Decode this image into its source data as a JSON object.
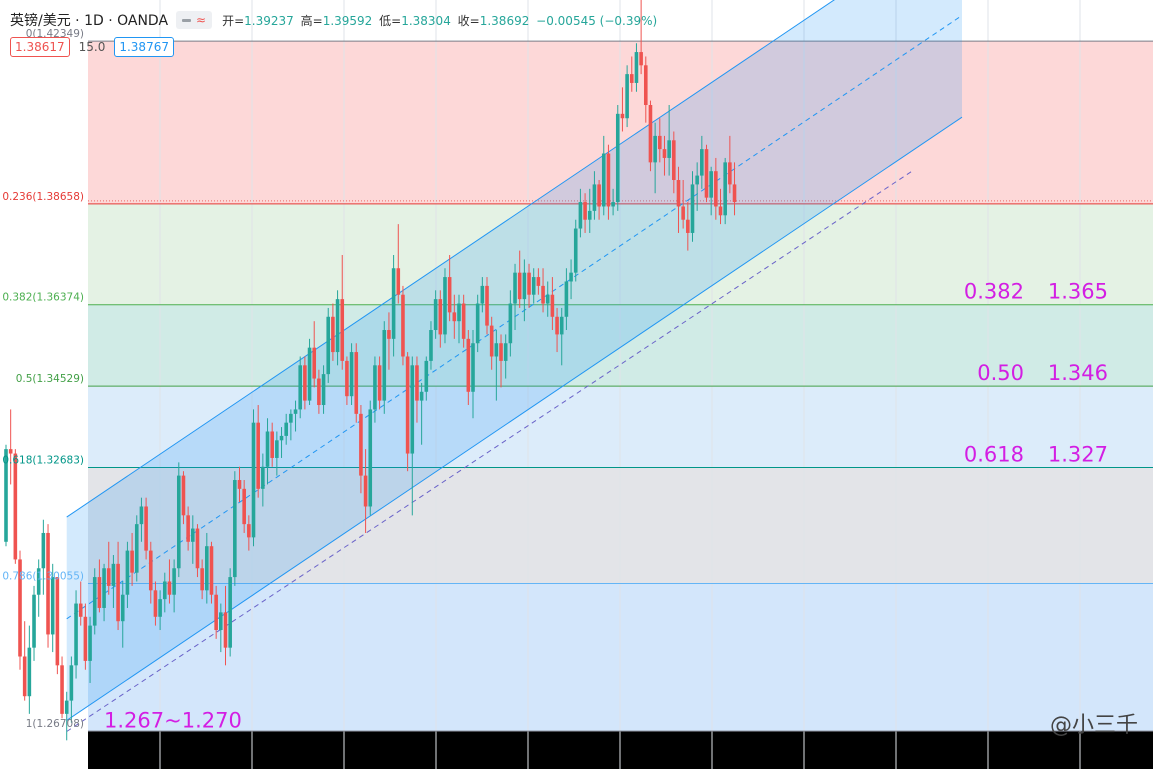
{
  "header": {
    "title": "英镑/美元 · 1D · OANDA",
    "open_label": "开=",
    "open": "1.39237",
    "high_label": "高=",
    "high": "1.39592",
    "low_label": "低=",
    "low": "1.38304",
    "close_label": "收=",
    "close": "1.38692",
    "change": "−0.00545 (−0.39%)",
    "toggle_icons": [
      "dash-icon",
      "wave-icon"
    ],
    "toggle_wave_glyph": "≈"
  },
  "trade": {
    "sell": "1.38617",
    "spread": "15.0",
    "buy": "1.38767"
  },
  "watermark": "@小三千",
  "chart_data": {
    "type": "candlestick",
    "title": "英镑/美元 · 1D · OANDA",
    "ylim": [
      1.2585,
      1.4328
    ],
    "fib_levels": [
      {
        "ratio": "0",
        "label": "0(1.42349)",
        "price": 1.42349,
        "color": "#787b86"
      },
      {
        "ratio": "0.236",
        "label": "0.236(1.38658)",
        "price": 1.38658,
        "color": "#e53935"
      },
      {
        "ratio": "0.382",
        "label": "0.382(1.36374)",
        "price": 1.36374,
        "color": "#4caf50"
      },
      {
        "ratio": "0.5",
        "label": "0.5(1.34529)",
        "price": 1.34529,
        "color": "#43a047"
      },
      {
        "ratio": "0.618",
        "label": "0.618(1.32683)",
        "price": 1.32683,
        "color": "#009688"
      },
      {
        "ratio": "0.786",
        "label": "0.786(1.30055)",
        "price": 1.30055,
        "color": "#64b5f6"
      },
      {
        "ratio": "1",
        "label": "1(1.26708)",
        "price": 1.26708,
        "color": "#787b86"
      }
    ],
    "zone_colors": [
      "#fdd8d8",
      "#e4f2e4",
      "#d0ebe6",
      "#dcecfa",
      "#e3e4e8",
      "#d3e6fb"
    ],
    "annotations": [
      {
        "ratio": "0.382",
        "value": "1.365",
        "price": 1.36374
      },
      {
        "ratio": "0.50",
        "value": "1.346",
        "price": 1.34529
      },
      {
        "ratio": "0.618",
        "value": "1.327",
        "price": 1.32683
      }
    ],
    "support_label": "1.267~1.270",
    "support_price": 1.269,
    "up_color": "#26a69a",
    "down_color": "#ef5350",
    "channel_color": "#2196f3",
    "channel": [
      {
        "bar": 13,
        "price": 1.2695
      },
      {
        "bar": 156,
        "price": 1.3715
      }
    ],
    "channel_width": 0.0461,
    "extension_line": [
      {
        "bar": 13,
        "price": 1.267
      },
      {
        "bar": 194,
        "price": 1.394
      }
    ],
    "candles": [
      [
        1.31,
        1.332,
        1.309,
        1.331
      ],
      [
        1.331,
        1.34,
        1.323,
        1.33
      ],
      [
        1.33,
        1.331,
        1.305,
        1.306
      ],
      [
        1.306,
        1.308,
        1.281,
        1.284
      ],
      [
        1.284,
        1.292,
        1.274,
        1.275
      ],
      [
        1.275,
        1.291,
        1.271,
        1.286
      ],
      [
        1.286,
        1.3,
        1.283,
        1.298
      ],
      [
        1.298,
        1.306,
        1.293,
        1.304
      ],
      [
        1.304,
        1.315,
        1.298,
        1.312
      ],
      [
        1.312,
        1.314,
        1.286,
        1.289
      ],
      [
        1.289,
        1.305,
        1.285,
        1.302
      ],
      [
        1.302,
        1.302,
        1.28,
        1.282
      ],
      [
        1.282,
        1.284,
        1.27,
        1.271
      ],
      [
        1.271,
        1.276,
        1.265,
        1.274
      ],
      [
        1.274,
        1.284,
        1.269,
        1.282
      ],
      [
        1.282,
        1.299,
        1.279,
        1.296
      ],
      [
        1.296,
        1.301,
        1.291,
        1.293
      ],
      [
        1.293,
        1.296,
        1.281,
        1.283
      ],
      [
        1.283,
        1.293,
        1.278,
        1.291
      ],
      [
        1.291,
        1.304,
        1.289,
        1.302
      ],
      [
        1.302,
        1.306,
        1.294,
        1.295
      ],
      [
        1.295,
        1.305,
        1.292,
        1.304
      ],
      [
        1.304,
        1.31,
        1.298,
        1.3
      ],
      [
        1.3,
        1.307,
        1.295,
        1.305
      ],
      [
        1.305,
        1.31,
        1.29,
        1.292
      ],
      [
        1.292,
        1.301,
        1.286,
        1.298
      ],
      [
        1.298,
        1.31,
        1.295,
        1.308
      ],
      [
        1.308,
        1.312,
        1.3,
        1.303
      ],
      [
        1.303,
        1.316,
        1.301,
        1.314
      ],
      [
        1.314,
        1.32,
        1.31,
        1.318
      ],
      [
        1.318,
        1.32,
        1.306,
        1.308
      ],
      [
        1.308,
        1.31,
        1.296,
        1.299
      ],
      [
        1.299,
        1.301,
        1.291,
        1.293
      ],
      [
        1.293,
        1.299,
        1.29,
        1.297
      ],
      [
        1.297,
        1.303,
        1.294,
        1.301
      ],
      [
        1.301,
        1.306,
        1.296,
        1.298
      ],
      [
        1.298,
        1.306,
        1.294,
        1.304
      ],
      [
        1.304,
        1.328,
        1.302,
        1.325
      ],
      [
        1.325,
        1.326,
        1.314,
        1.316
      ],
      [
        1.316,
        1.318,
        1.308,
        1.31
      ],
      [
        1.31,
        1.316,
        1.305,
        1.313
      ],
      [
        1.313,
        1.314,
        1.302,
        1.304
      ],
      [
        1.304,
        1.306,
        1.297,
        1.299
      ],
      [
        1.299,
        1.312,
        1.296,
        1.309
      ],
      [
        1.309,
        1.31,
        1.296,
        1.298
      ],
      [
        1.298,
        1.3,
        1.288,
        1.29
      ],
      [
        1.29,
        1.296,
        1.285,
        1.294
      ],
      [
        1.294,
        1.3,
        1.282,
        1.286
      ],
      [
        1.286,
        1.304,
        1.284,
        1.302
      ],
      [
        1.302,
        1.326,
        1.3,
        1.324
      ],
      [
        1.324,
        1.327,
        1.319,
        1.322
      ],
      [
        1.322,
        1.324,
        1.312,
        1.314
      ],
      [
        1.314,
        1.316,
        1.308,
        1.311
      ],
      [
        1.311,
        1.34,
        1.309,
        1.337
      ],
      [
        1.337,
        1.341,
        1.32,
        1.322
      ],
      [
        1.322,
        1.33,
        1.318,
        1.327
      ],
      [
        1.327,
        1.338,
        1.323,
        1.335
      ],
      [
        1.335,
        1.337,
        1.327,
        1.329
      ],
      [
        1.329,
        1.335,
        1.325,
        1.333
      ],
      [
        1.333,
        1.336,
        1.329,
        1.334
      ],
      [
        1.334,
        1.339,
        1.332,
        1.337
      ],
      [
        1.337,
        1.34,
        1.333,
        1.339
      ],
      [
        1.339,
        1.342,
        1.335,
        1.34
      ],
      [
        1.34,
        1.352,
        1.338,
        1.35
      ],
      [
        1.35,
        1.352,
        1.34,
        1.342
      ],
      [
        1.342,
        1.356,
        1.341,
        1.354
      ],
      [
        1.354,
        1.36,
        1.345,
        1.347
      ],
      [
        1.347,
        1.349,
        1.339,
        1.341
      ],
      [
        1.341,
        1.35,
        1.339,
        1.348
      ],
      [
        1.348,
        1.363,
        1.346,
        1.361
      ],
      [
        1.361,
        1.364,
        1.351,
        1.353
      ],
      [
        1.353,
        1.367,
        1.35,
        1.365
      ],
      [
        1.365,
        1.375,
        1.349,
        1.351
      ],
      [
        1.351,
        1.352,
        1.341,
        1.343
      ],
      [
        1.343,
        1.355,
        1.341,
        1.353
      ],
      [
        1.353,
        1.355,
        1.337,
        1.339
      ],
      [
        1.339,
        1.341,
        1.321,
        1.325
      ],
      [
        1.325,
        1.331,
        1.312,
        1.318
      ],
      [
        1.318,
        1.342,
        1.316,
        1.34
      ],
      [
        1.34,
        1.352,
        1.337,
        1.35
      ],
      [
        1.35,
        1.352,
        1.34,
        1.342
      ],
      [
        1.342,
        1.36,
        1.339,
        1.358
      ],
      [
        1.358,
        1.362,
        1.349,
        1.356
      ],
      [
        1.356,
        1.375,
        1.352,
        1.372
      ],
      [
        1.372,
        1.382,
        1.364,
        1.366
      ],
      [
        1.366,
        1.368,
        1.35,
        1.352
      ],
      [
        1.352,
        1.353,
        1.326,
        1.33
      ],
      [
        1.33,
        1.352,
        1.316,
        1.35
      ],
      [
        1.35,
        1.352,
        1.337,
        1.342
      ],
      [
        1.342,
        1.346,
        1.332,
        1.344
      ],
      [
        1.344,
        1.352,
        1.342,
        1.351
      ],
      [
        1.351,
        1.36,
        1.349,
        1.358
      ],
      [
        1.358,
        1.367,
        1.356,
        1.365
      ],
      [
        1.365,
        1.367,
        1.354,
        1.357
      ],
      [
        1.357,
        1.372,
        1.355,
        1.37
      ],
      [
        1.37,
        1.375,
        1.36,
        1.362
      ],
      [
        1.362,
        1.366,
        1.356,
        1.36
      ],
      [
        1.36,
        1.366,
        1.355,
        1.364
      ],
      [
        1.364,
        1.366,
        1.354,
        1.356
      ],
      [
        1.356,
        1.358,
        1.341,
        1.344
      ],
      [
        1.344,
        1.358,
        1.338,
        1.355
      ],
      [
        1.355,
        1.366,
        1.353,
        1.364
      ],
      [
        1.364,
        1.37,
        1.362,
        1.368
      ],
      [
        1.368,
        1.37,
        1.357,
        1.359
      ],
      [
        1.359,
        1.361,
        1.349,
        1.352
      ],
      [
        1.352,
        1.358,
        1.342,
        1.355
      ],
      [
        1.355,
        1.357,
        1.345,
        1.351
      ],
      [
        1.351,
        1.357,
        1.347,
        1.355
      ],
      [
        1.355,
        1.367,
        1.352,
        1.364
      ],
      [
        1.364,
        1.373,
        1.358,
        1.371
      ],
      [
        1.371,
        1.376,
        1.363,
        1.365
      ],
      [
        1.365,
        1.374,
        1.36,
        1.371
      ],
      [
        1.371,
        1.373,
        1.363,
        1.366
      ],
      [
        1.366,
        1.372,
        1.364,
        1.37
      ],
      [
        1.37,
        1.372,
        1.366,
        1.368
      ],
      [
        1.368,
        1.372,
        1.362,
        1.364
      ],
      [
        1.364,
        1.369,
        1.361,
        1.366
      ],
      [
        1.366,
        1.37,
        1.358,
        1.361
      ],
      [
        1.361,
        1.363,
        1.353,
        1.357
      ],
      [
        1.357,
        1.363,
        1.35,
        1.361
      ],
      [
        1.361,
        1.372,
        1.358,
        1.369
      ],
      [
        1.369,
        1.374,
        1.365,
        1.371
      ],
      [
        1.371,
        1.383,
        1.369,
        1.381
      ],
      [
        1.381,
        1.39,
        1.379,
        1.387
      ],
      [
        1.387,
        1.389,
        1.38,
        1.383
      ],
      [
        1.383,
        1.39,
        1.38,
        1.385
      ],
      [
        1.385,
        1.394,
        1.383,
        1.391
      ],
      [
        1.391,
        1.392,
        1.383,
        1.386
      ],
      [
        1.386,
        1.402,
        1.384,
        1.398
      ],
      [
        1.398,
        1.4,
        1.383,
        1.386
      ],
      [
        1.386,
        1.39,
        1.384,
        1.387
      ],
      [
        1.387,
        1.409,
        1.385,
        1.407
      ],
      [
        1.407,
        1.413,
        1.403,
        1.406
      ],
      [
        1.406,
        1.418,
        1.404,
        1.416
      ],
      [
        1.416,
        1.42,
        1.412,
        1.414
      ],
      [
        1.414,
        1.423,
        1.412,
        1.421
      ],
      [
        1.421,
        1.434,
        1.416,
        1.418
      ],
      [
        1.418,
        1.42,
        1.405,
        1.409
      ],
      [
        1.409,
        1.41,
        1.394,
        1.396
      ],
      [
        1.396,
        1.405,
        1.389,
        1.402
      ],
      [
        1.402,
        1.406,
        1.396,
        1.399
      ],
      [
        1.399,
        1.402,
        1.393,
        1.397
      ],
      [
        1.397,
        1.409,
        1.393,
        1.401
      ],
      [
        1.401,
        1.403,
        1.389,
        1.392
      ],
      [
        1.392,
        1.395,
        1.38,
        1.386
      ],
      [
        1.386,
        1.392,
        1.381,
        1.383
      ],
      [
        1.383,
        1.387,
        1.376,
        1.38
      ],
      [
        1.38,
        1.394,
        1.378,
        1.391
      ],
      [
        1.391,
        1.396,
        1.385,
        1.393
      ],
      [
        1.393,
        1.402,
        1.39,
        1.399
      ],
      [
        1.399,
        1.4,
        1.387,
        1.388
      ],
      [
        1.388,
        1.395,
        1.384,
        1.394
      ],
      [
        1.394,
        1.397,
        1.383,
        1.386
      ],
      [
        1.386,
        1.39,
        1.382,
        1.384
      ],
      [
        1.384,
        1.397,
        1.382,
        1.396
      ],
      [
        1.396,
        1.402,
        1.389,
        1.391
      ],
      [
        1.391,
        1.396,
        1.384,
        1.387
      ]
    ]
  }
}
